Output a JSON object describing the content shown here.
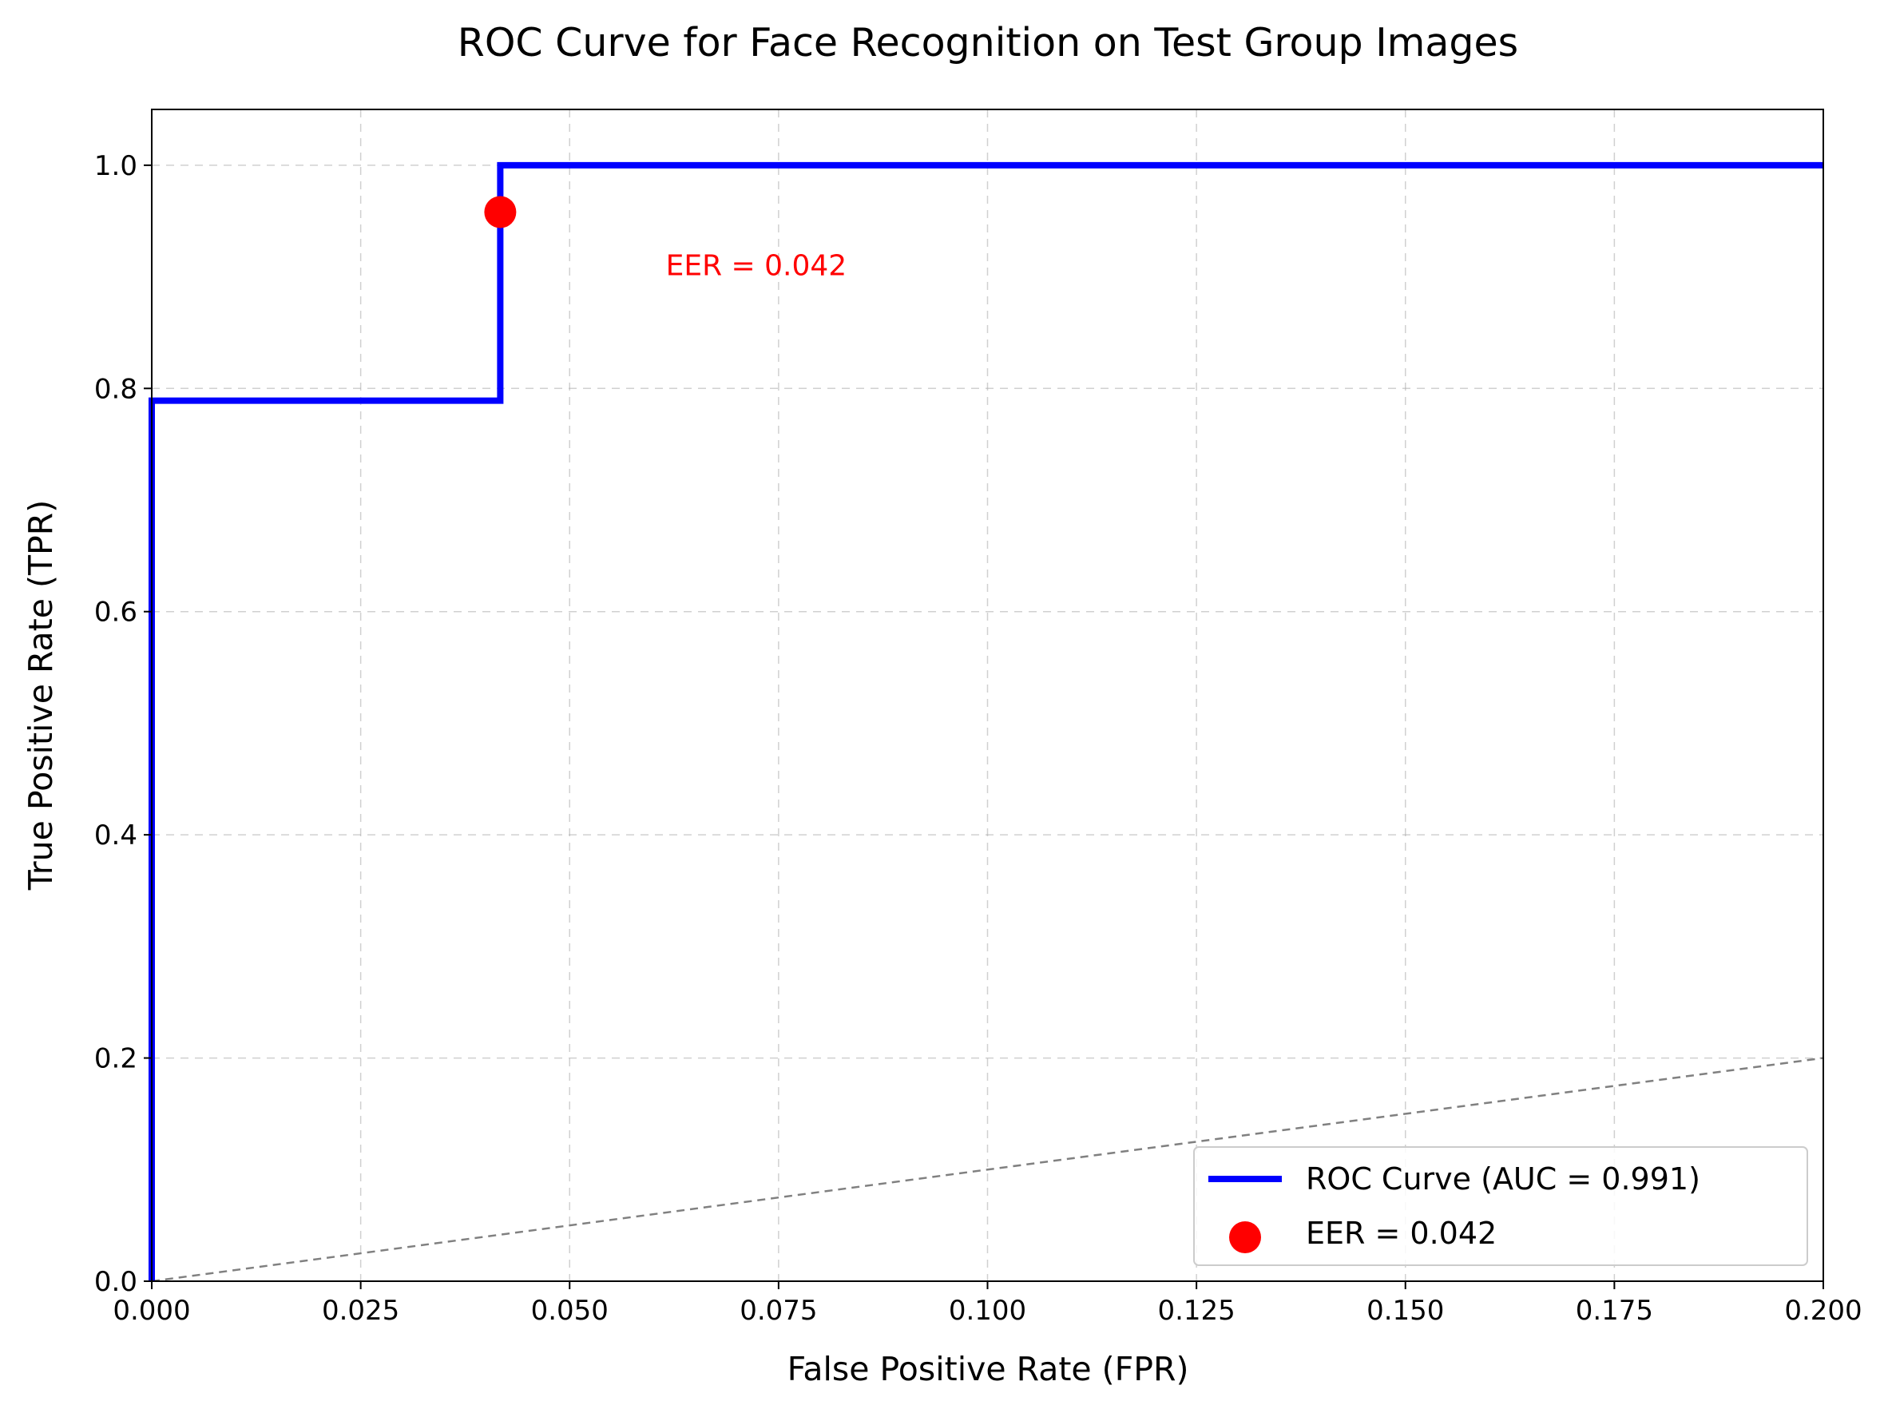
{
  "chart_data": {
    "type": "line",
    "title": "ROC Curve for Face Recognition on Test Group Images",
    "xlabel": "False Positive Rate (FPR)",
    "ylabel": "True Positive Rate (TPR)",
    "xlim": [
      0.0,
      0.2
    ],
    "ylim": [
      0.0,
      1.05
    ],
    "grid": true,
    "x_ticks": [
      0.0,
      0.025,
      0.05,
      0.075,
      0.1,
      0.125,
      0.15,
      0.175,
      0.2
    ],
    "x_tick_labels": [
      "0.000",
      "0.025",
      "0.050",
      "0.075",
      "0.100",
      "0.125",
      "0.150",
      "0.175",
      "0.200"
    ],
    "y_ticks": [
      0.0,
      0.2,
      0.4,
      0.6,
      0.8,
      1.0
    ],
    "y_tick_labels": [
      "0.0",
      "0.2",
      "0.4",
      "0.6",
      "0.8",
      "1.0"
    ],
    "series": [
      {
        "name": "ROC Curve (AUC = 0.991)",
        "kind": "step-line",
        "color": "#0000ff",
        "x": [
          0.0,
          0.0,
          0.0417,
          0.0417,
          0.2
        ],
        "y": [
          0.0,
          0.789,
          0.789,
          1.0,
          1.0
        ]
      },
      {
        "name": "chance-diagonal",
        "kind": "dashed-line",
        "color": "#808080",
        "x": [
          0.0,
          0.2
        ],
        "y": [
          0.0,
          0.2
        ]
      },
      {
        "name": "EER = 0.042",
        "kind": "scatter",
        "color": "#ff0000",
        "x": [
          0.0417
        ],
        "y": [
          0.958
        ]
      }
    ],
    "annotations": [
      {
        "text": "EER = 0.042",
        "x": 0.0615,
        "y": 0.91,
        "color": "#ff0000"
      }
    ],
    "legend": {
      "position": "lower-right",
      "entries": [
        {
          "label": "ROC Curve (AUC = 0.991)",
          "marker": "line",
          "color": "#0000ff"
        },
        {
          "label": "EER = 0.042",
          "marker": "dot",
          "color": "#ff0000"
        }
      ]
    }
  }
}
